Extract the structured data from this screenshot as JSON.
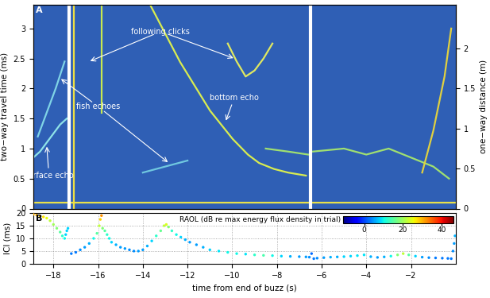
{
  "chart_data": [
    {
      "type": "line",
      "title": "A",
      "y_label": "two−way travel time (ms)",
      "y2_label": "one−way distance (m)",
      "xlim": [
        -18.9,
        0
      ],
      "ylim": [
        0,
        3.4
      ],
      "yticks": [
        0,
        0.5,
        1,
        1.5,
        2,
        2.5,
        3
      ],
      "y2lim": [
        0,
        2.55
      ],
      "y2ticks": [
        0,
        0.5,
        1,
        1.5,
        2
      ],
      "tick_labels": "y",
      "breaks": [
        -17.3,
        -6.5
      ],
      "series": [
        {
          "color": "#8fe3e8",
          "x": [
            -18.9,
            -18.6,
            -18.3,
            -18.0,
            -17.7,
            -17.4
          ],
          "values": [
            0.85,
            0.95,
            1.1,
            1.25,
            1.4,
            1.5
          ]
        },
        {
          "color": "#7fd4e6",
          "x": [
            -18.7,
            -18.3,
            -17.9,
            -17.5
          ],
          "values": [
            1.2,
            1.6,
            2.0,
            2.45
          ]
        },
        {
          "color": "#e8e04a",
          "x": [
            -18.9,
            -17.4,
            -17.3,
            -17.2,
            -6.6,
            -6.5,
            -6.4,
            0
          ],
          "values": [
            0.1,
            0.1,
            null,
            0.1,
            0.1,
            null,
            0.1,
            0.1
          ]
        },
        {
          "color": "#f0e040",
          "x": [
            -17.1,
            -17.1
          ],
          "values": [
            0,
            3.4
          ]
        },
        {
          "color": "#c8e850",
          "x": [
            -15.85,
            -15.85
          ],
          "values": [
            1.6,
            3.4
          ]
        },
        {
          "color": "#d8ec50",
          "x": [
            -13.68,
            -12.33,
            -10.99,
            -9.98,
            -9.3,
            -8.8,
            -8.13,
            -7.5,
            -6.7
          ],
          "values": [
            3.4,
            2.44,
            1.63,
            1.16,
            0.9,
            0.76,
            0.66,
            0.6,
            0.55
          ]
        },
        {
          "color": "#e0e860",
          "x": [
            -10.2,
            -9.8,
            -9.4,
            -9.0,
            -8.6,
            -8.2
          ],
          "values": [
            2.75,
            2.45,
            2.2,
            2.3,
            2.5,
            2.75
          ]
        },
        {
          "color": "#a0e070",
          "x": [
            -8.5,
            -7.5,
            -6.6,
            -6.5,
            -6.4,
            -5,
            -4,
            -3,
            -2,
            -1,
            -0.3
          ],
          "values": [
            1.0,
            0.95,
            0.9,
            null,
            0.95,
            1.0,
            0.9,
            1.0,
            0.85,
            0.7,
            0.5
          ]
        },
        {
          "color": "#e0d040",
          "x": [
            -1.5,
            -1.0,
            -0.5,
            -0.2
          ],
          "values": [
            0.6,
            1.3,
            2.2,
            3.0
          ]
        },
        {
          "color": "#70c8e0",
          "x": [
            -14.0,
            -13.0,
            -12.0
          ],
          "values": [
            0.6,
            0.7,
            0.8
          ]
        }
      ],
      "annotations": [
        {
          "text": "following clicks",
          "x": -13.2,
          "y": 2.95,
          "targets": [
            [
              -16.4,
              2.45
            ],
            [
              -9.9,
              2.5
            ]
          ]
        },
        {
          "text": "fish echoes",
          "x": -16.0,
          "y": 1.7,
          "targets": [
            [
              -17.7,
              2.17
            ],
            [
              -12.84,
              0.76
            ]
          ]
        },
        {
          "text": "bottom echo",
          "x": -9.9,
          "y": 1.85,
          "targets": [
            [
              -10.3,
              1.45
            ]
          ]
        },
        {
          "text": "surface echo",
          "x": -18.2,
          "y": 0.55,
          "targets": [
            [
              -18.3,
              1.05
            ]
          ]
        }
      ]
    },
    {
      "type": "scatter",
      "title": "B",
      "x_label": "time from end of buzz (s)",
      "y_label": "ICI (ms)",
      "xlim": [
        -18.9,
        0
      ],
      "ylim": [
        0,
        20
      ],
      "xticks": [
        {
          "value": -18,
          "label": "−18"
        },
        {
          "value": -16,
          "label": "−16"
        },
        {
          "value": -14,
          "label": "−14"
        },
        {
          "value": -12,
          "label": "−12"
        },
        {
          "value": -10,
          "label": "−10"
        },
        {
          "value": -8,
          "label": "−8"
        },
        {
          "value": -6,
          "label": "−6"
        },
        {
          "value": -4,
          "label": "−4"
        },
        {
          "value": -2,
          "label": "−2"
        }
      ],
      "yticks": [
        0,
        5,
        10,
        15,
        20
      ],
      "grid": true,
      "x": [
        -18.9,
        -18.75,
        -18.6,
        -18.45,
        -18.3,
        -18.15,
        -18.0,
        -17.85,
        -17.7,
        -17.6,
        -17.5,
        -17.45,
        -17.4,
        -17.35,
        -17.2,
        -17.0,
        -16.8,
        -16.6,
        -16.4,
        -16.2,
        -16.05,
        -15.95,
        -15.9,
        -15.85,
        -15.8,
        -15.7,
        -15.6,
        -15.5,
        -15.4,
        -15.2,
        -15.0,
        -14.8,
        -14.6,
        -14.4,
        -14.2,
        -14.0,
        -13.8,
        -13.6,
        -13.4,
        -13.2,
        -13.05,
        -12.95,
        -12.85,
        -12.7,
        -12.5,
        -12.3,
        -12.1,
        -11.9,
        -11.6,
        -11.3,
        -11.0,
        -10.6,
        -10.2,
        -9.8,
        -9.4,
        -9.0,
        -8.6,
        -8.2,
        -7.8,
        -7.4,
        -7.0,
        -6.7,
        -6.55,
        -6.45,
        -6.35,
        -6.2,
        -5.9,
        -5.6,
        -5.3,
        -5.0,
        -4.7,
        -4.4,
        -4.1,
        -3.8,
        -3.5,
        -3.2,
        -2.9,
        -2.6,
        -2.35,
        -2.1,
        -1.8,
        -1.5,
        -1.2,
        -0.9,
        -0.6,
        -0.35,
        -0.2,
        -0.12,
        -0.07,
        -0.03
      ],
      "values": [
        19.5,
        19.2,
        18.8,
        18.5,
        18.0,
        17.0,
        15.5,
        14.0,
        12.5,
        11.0,
        10.0,
        11.5,
        13.0,
        14.0,
        4.0,
        4.5,
        5.5,
        6.5,
        8.0,
        10.0,
        12.0,
        15.0,
        17.5,
        19.0,
        14.0,
        13.0,
        11.5,
        10.0,
        8.5,
        7.5,
        6.5,
        6.0,
        5.5,
        5.0,
        5.0,
        5.5,
        7.0,
        9.0,
        11.0,
        13.0,
        15.0,
        15.5,
        14.5,
        13.0,
        11.5,
        10.5,
        9.5,
        8.5,
        7.5,
        6.5,
        5.5,
        5.0,
        4.5,
        4.0,
        3.8,
        3.5,
        3.3,
        3.2,
        3.0,
        2.9,
        2.8,
        2.7,
        2.6,
        4.0,
        2.0,
        2.2,
        2.4,
        2.6,
        2.7,
        2.8,
        3.0,
        3.2,
        3.5,
        2.8,
        2.5,
        2.7,
        3.0,
        3.5,
        4.0,
        3.5,
        3.0,
        2.6,
        2.4,
        2.3,
        2.2,
        2.1,
        2.0,
        5.0,
        8.0,
        11.0
      ],
      "raol": [
        30,
        30,
        28,
        27,
        25,
        22,
        20,
        18,
        15,
        12,
        10,
        8,
        8,
        8,
        3,
        3,
        4,
        5,
        6,
        10,
        15,
        22,
        28,
        32,
        18,
        15,
        12,
        10,
        8,
        6,
        5,
        5,
        4,
        4,
        5,
        5,
        6,
        8,
        12,
        16,
        22,
        24,
        18,
        12,
        10,
        8,
        6,
        5,
        5,
        6,
        8,
        9,
        10,
        10,
        9,
        12,
        14,
        10,
        8,
        6,
        5,
        5,
        4,
        2,
        3,
        4,
        5,
        6,
        6,
        8,
        8,
        9,
        9,
        6,
        5,
        6,
        10,
        18,
        22,
        15,
        8,
        5,
        4,
        3,
        3,
        3,
        3,
        4,
        5,
        6
      ],
      "colorbar": {
        "label": "RAOL (dB re max energy flux density in trial)",
        "range": [
          -11,
          46
        ],
        "ticks": [
          0,
          20,
          40
        ]
      }
    }
  ]
}
